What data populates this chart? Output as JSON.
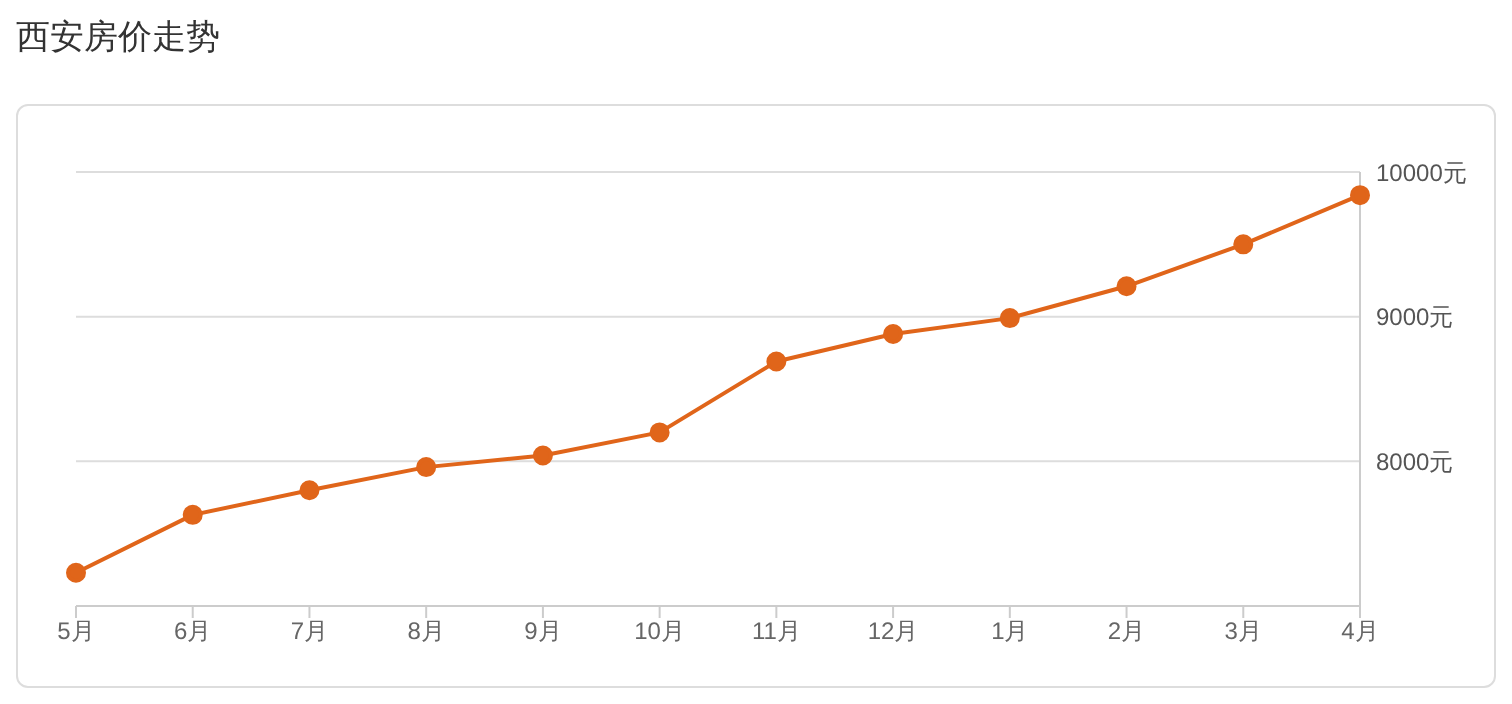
{
  "chart_data": {
    "type": "line",
    "title": "西安房价走势",
    "categories": [
      "5月",
      "6月",
      "7月",
      "8月",
      "9月",
      "10月",
      "11月",
      "12月",
      "1月",
      "2月",
      "3月",
      "4月"
    ],
    "series": [
      {
        "color": "#e0651a",
        "values": [
          7230,
          7630,
          7800,
          7960,
          8040,
          8200,
          8690,
          8880,
          8990,
          9210,
          9500,
          9840
        ]
      }
    ],
    "ylim": [
      7000,
      10000
    ],
    "yticks": [
      {
        "value": 8000,
        "label": "8000元"
      },
      {
        "value": 9000,
        "label": "9000元"
      },
      {
        "value": 10000,
        "label": "10000元"
      }
    ],
    "grid": "y",
    "marker": "circle",
    "line_style": "solid",
    "legend": false
  }
}
